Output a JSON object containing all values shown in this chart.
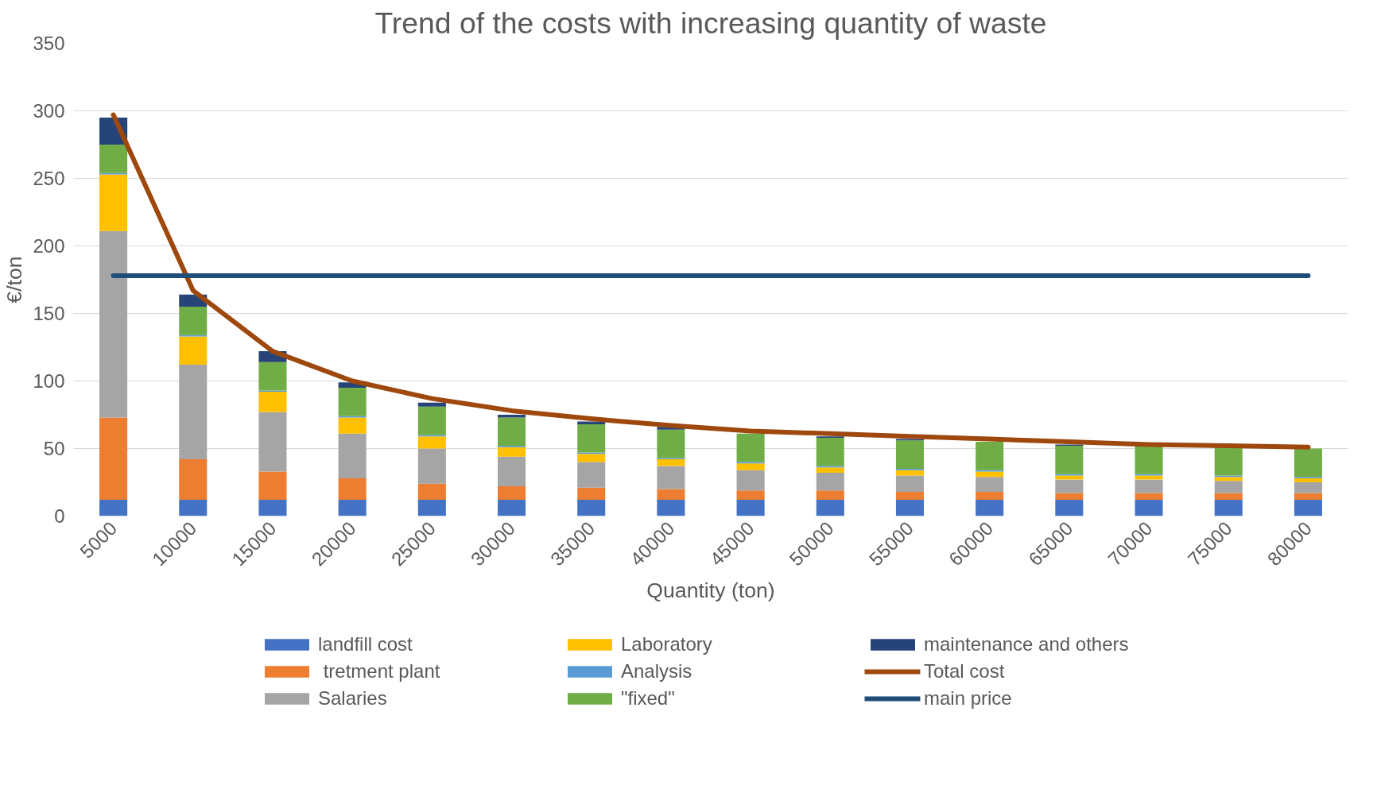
{
  "chart_data": {
    "type": "bar",
    "stacked": true,
    "title": "Trend of the costs with increasing quantity of waste",
    "xlabel": "Quantity (ton)",
    "ylabel": "€/ton",
    "categories": [
      "5000",
      "10000",
      "15000",
      "20000",
      "25000",
      "30000",
      "35000",
      "40000",
      "45000",
      "50000",
      "55000",
      "60000",
      "65000",
      "70000",
      "75000",
      "80000"
    ],
    "ylim": [
      0,
      350
    ],
    "yticks": [
      0,
      50,
      100,
      150,
      200,
      250,
      300,
      350
    ],
    "grid": "y",
    "legend": "bottom",
    "series": [
      {
        "name": "landfill cost",
        "color": "#4472c4",
        "values": [
          12,
          12,
          12,
          12,
          12,
          12,
          12,
          12,
          12,
          12,
          12,
          12,
          12,
          12,
          12,
          12
        ]
      },
      {
        "name": " tretment plant",
        "color": "#ed7d31",
        "values": [
          61,
          30,
          21,
          16,
          12,
          10,
          9,
          8,
          7,
          7,
          6,
          6,
          5,
          5,
          5,
          5
        ]
      },
      {
        "name": "Salaries",
        "color": "#a5a5a5",
        "values": [
          138,
          70,
          44,
          33,
          26,
          22,
          19,
          17,
          15,
          13,
          12,
          11,
          10,
          10,
          9,
          8
        ]
      },
      {
        "name": "Laboratory",
        "color": "#ffc000",
        "values": [
          42,
          21,
          15,
          12,
          9,
          7,
          6,
          5,
          5,
          4,
          4,
          4,
          3,
          3,
          3,
          3
        ]
      },
      {
        "name": "Analysis",
        "color": "#5b9bd5",
        "values": [
          1,
          1,
          1,
          1,
          1,
          1,
          1,
          1,
          1,
          1,
          1,
          1,
          1,
          1,
          1,
          1
        ]
      },
      {
        "name": "\"fixed\"",
        "color": "#70ad47",
        "values": [
          21,
          21,
          21,
          21,
          21,
          21,
          21,
          21,
          21,
          21,
          21,
          21,
          21,
          21,
          21,
          21
        ]
      },
      {
        "name": "maintenance and others",
        "color": "#264478",
        "values": [
          20,
          9,
          8,
          4,
          3,
          2,
          2,
          2,
          null,
          1,
          1,
          null,
          1,
          null,
          null,
          null
        ]
      },
      {
        "name": "Total cost",
        "type": "line",
        "color": "#9e480e",
        "values": [
          297,
          167,
          122,
          100,
          87,
          78,
          72,
          67,
          63,
          61,
          59,
          57,
          55,
          53,
          52,
          51
        ]
      },
      {
        "name": "main price",
        "type": "line",
        "color": "#1f4e79",
        "values": [
          178,
          178,
          178,
          178,
          178,
          178,
          178,
          178,
          178,
          178,
          178,
          178,
          178,
          178,
          178,
          178
        ]
      }
    ]
  }
}
